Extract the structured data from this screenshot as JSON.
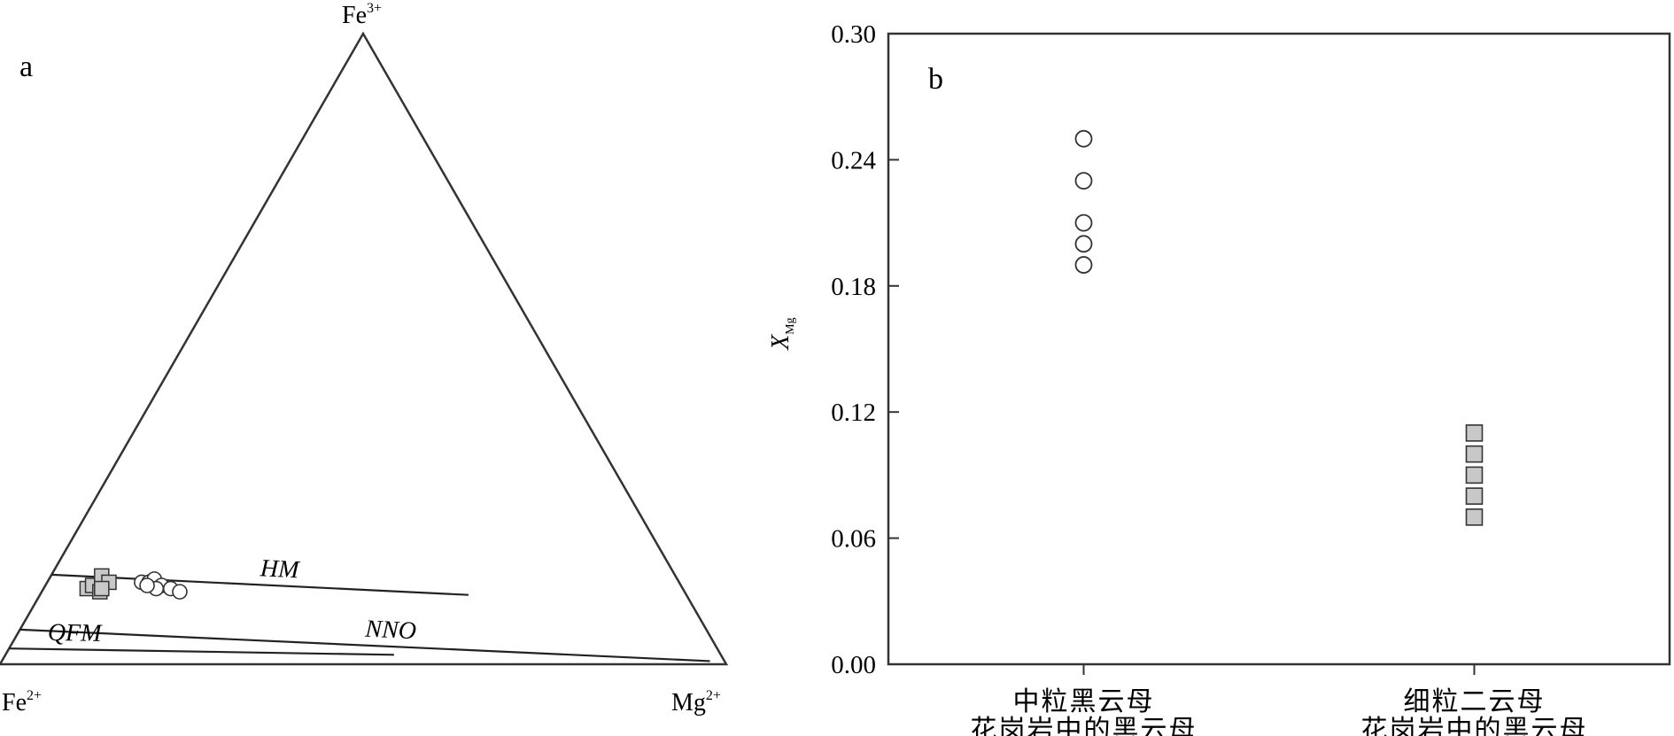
{
  "chart_data": [
    {
      "type": "scatter",
      "panel_label": "a",
      "ternary": true,
      "vertices": {
        "top": "Fe",
        "top_sup": "3+",
        "left": "Fe",
        "left_sup": "2+",
        "right": "Mg",
        "right_sup": "2+"
      },
      "buffers": [
        {
          "name": "HM",
          "from": [
            0.858,
            0.142
          ],
          "to": [
            0.3,
            0.11
          ]
        },
        {
          "name": "NNO",
          "from": [
            0.945,
            0.055
          ],
          "to": [
            0.02,
            0.005
          ]
        },
        {
          "name": "QFM",
          "from": [
            0.975,
            0.025
          ],
          "to": [
            0.45,
            0.015
          ]
        }
      ],
      "series": [
        {
          "marker": "square",
          "points": [
            [
              0.82,
              0.12
            ],
            [
              0.81,
              0.125
            ],
            [
              0.79,
              0.14
            ],
            [
              0.805,
              0.115
            ],
            [
              0.785,
              0.13
            ],
            [
              0.8,
              0.12
            ]
          ]
        },
        {
          "marker": "circle",
          "points": [
            [
              0.74,
              0.13
            ],
            [
              0.73,
              0.13
            ],
            [
              0.72,
              0.135
            ],
            [
              0.715,
              0.125
            ],
            [
              0.705,
              0.12
            ],
            [
              0.695,
              0.115
            ],
            [
              0.725,
              0.12
            ],
            [
              0.735,
              0.125
            ]
          ]
        }
      ]
    },
    {
      "type": "scatter",
      "panel_label": "b",
      "ylabel": "X",
      "ylabel_sub": "Mg",
      "ylim": [
        0,
        0.3
      ],
      "yticks": [
        "0.00",
        "0.06",
        "0.12",
        "0.18",
        "0.24",
        "0.30"
      ],
      "categories": [
        {
          "line1": "中粒黑云母",
          "line2": "花岗岩中的黑云母"
        },
        {
          "line1": "细粒二云母",
          "line2": "花岗岩中的黑云母"
        }
      ],
      "series": [
        {
          "category_index": 0,
          "marker": "circle",
          "values": [
            0.25,
            0.23,
            0.21,
            0.2,
            0.19
          ]
        },
        {
          "category_index": 1,
          "marker": "square",
          "values": [
            0.11,
            0.1,
            0.09,
            0.08,
            0.07
          ]
        }
      ]
    }
  ],
  "colors": {
    "open_marker_fill": "#ffffff",
    "gray_marker_fill": "#c8c8c8",
    "marker_stroke": "#333333"
  }
}
